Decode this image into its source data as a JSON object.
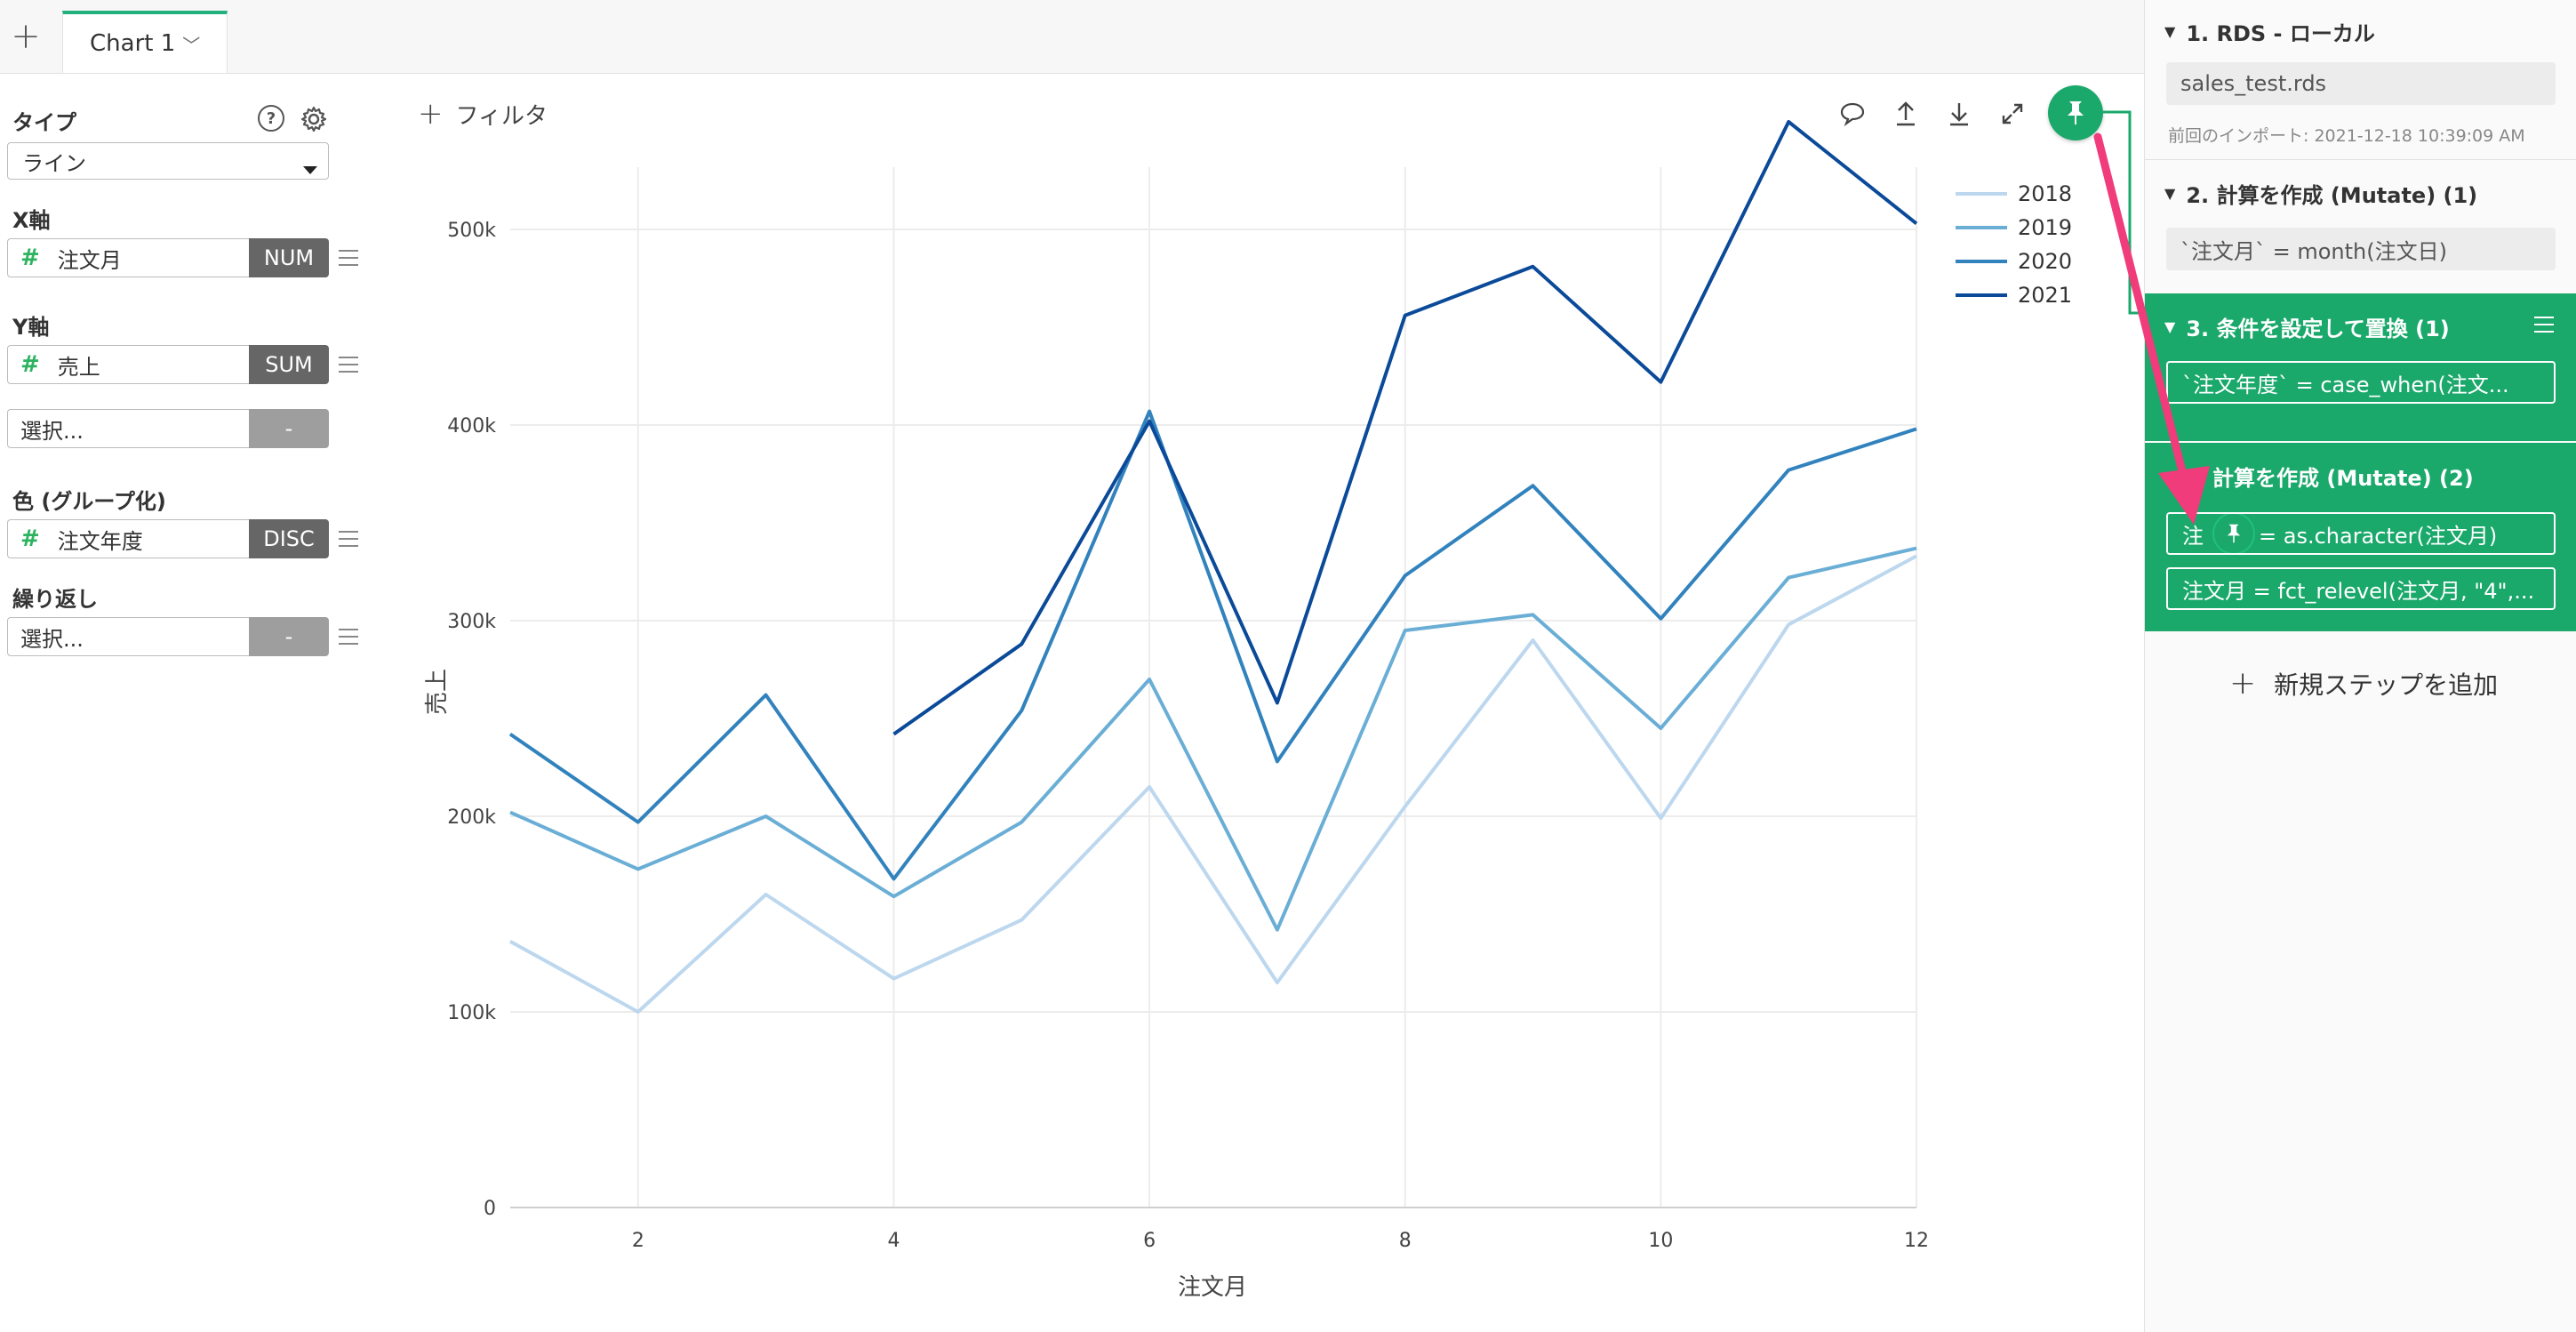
{
  "tabs": {
    "add_label": "+",
    "active_label": "Chart 1",
    "chevron": "﹀"
  },
  "left_panel": {
    "type_label": "タイプ",
    "type_value": "ライン",
    "help_glyph": "?",
    "xaxis_label": "X軸",
    "xaxis_field": "注文月",
    "xaxis_tag": "NUM",
    "yaxis_label": "Y軸",
    "yaxis_field": "売上",
    "yaxis_tag": "SUM",
    "yaxis_second": "選択...",
    "yaxis_second_tag": "-",
    "color_label": "色 (グループ化)",
    "color_field": "注文年度",
    "color_tag": "DISC",
    "repeat_label": "繰り返し",
    "repeat_value": "選択...",
    "repeat_tag": "-",
    "hash": "#"
  },
  "toolbar": {
    "filter_label": "フィルタ",
    "plus": "+"
  },
  "icons": {
    "comment": "comment-icon",
    "upload": "upload-icon",
    "download": "download-icon",
    "expand": "expand-icon",
    "pin": "pin-icon",
    "settings": "gear-icon",
    "help": "help-icon",
    "dropdown": "caret-down-icon",
    "drag": "drag-handle-icon"
  },
  "chart_data": {
    "type": "line",
    "x": [
      1,
      2,
      3,
      4,
      5,
      6,
      7,
      8,
      9,
      10,
      11,
      12
    ],
    "xlabel": "注文月",
    "ylabel": "売上",
    "xlim": [
      1,
      12
    ],
    "ylim": [
      0,
      550000
    ],
    "x_ticks": [
      2,
      4,
      6,
      8,
      10,
      12
    ],
    "y_ticks": [
      0,
      100000,
      200000,
      300000,
      400000,
      500000
    ],
    "y_tick_labels": [
      "0",
      "100k",
      "200k",
      "300k",
      "400k",
      "500k"
    ],
    "grid": true,
    "legend": "top-right",
    "series": [
      {
        "name": "2018",
        "color": "#bcd7ee",
        "values": [
          136000,
          100000,
          160000,
          117000,
          147000,
          215000,
          115000,
          205000,
          290000,
          199000,
          298000,
          333000
        ]
      },
      {
        "name": "2019",
        "color": "#6aaed6",
        "values": [
          202000,
          173000,
          200000,
          159000,
          197000,
          270000,
          142000,
          295000,
          303000,
          245000,
          322000,
          337000
        ]
      },
      {
        "name": "2020",
        "color": "#3182bd",
        "values": [
          242000,
          197000,
          262000,
          168000,
          254000,
          407000,
          228000,
          323000,
          369000,
          301000,
          377000,
          398000
        ]
      },
      {
        "name": "2021",
        "color": "#0b4a99",
        "values": [
          null,
          null,
          null,
          242000,
          288000,
          402000,
          258000,
          456000,
          481000,
          422000,
          555000,
          503000
        ]
      }
    ]
  },
  "steps": [
    {
      "title": "1. RDS - ローカル",
      "commands": [
        "sales_test.rds"
      ],
      "note": "前回のインポート: 2021-12-18 10:39:09 AM"
    },
    {
      "title": "2. 計算を作成 (Mutate) (1)",
      "commands": [
        "`注文月` = month(注文日)"
      ]
    },
    {
      "title": "3. 条件を設定して置換 (1)",
      "commands": [
        "`注文年度` = case_when(注文..."
      ]
    },
    {
      "title": "4. 計算を作成 (Mutate) (2)",
      "title_visible": "計算を作成 (Mutate) (2)",
      "commands": [
        "注文月 = as.character(注文月)",
        "注文月 = fct_relevel(注文月, \"4\",..."
      ],
      "cmd1_prefix": "注",
      "cmd1_suffix": "= as.character(注文月)"
    }
  ],
  "add_step_label": "新規ステップを追加",
  "accent": "#1aa86b",
  "arrow_color": "#f03c7a"
}
